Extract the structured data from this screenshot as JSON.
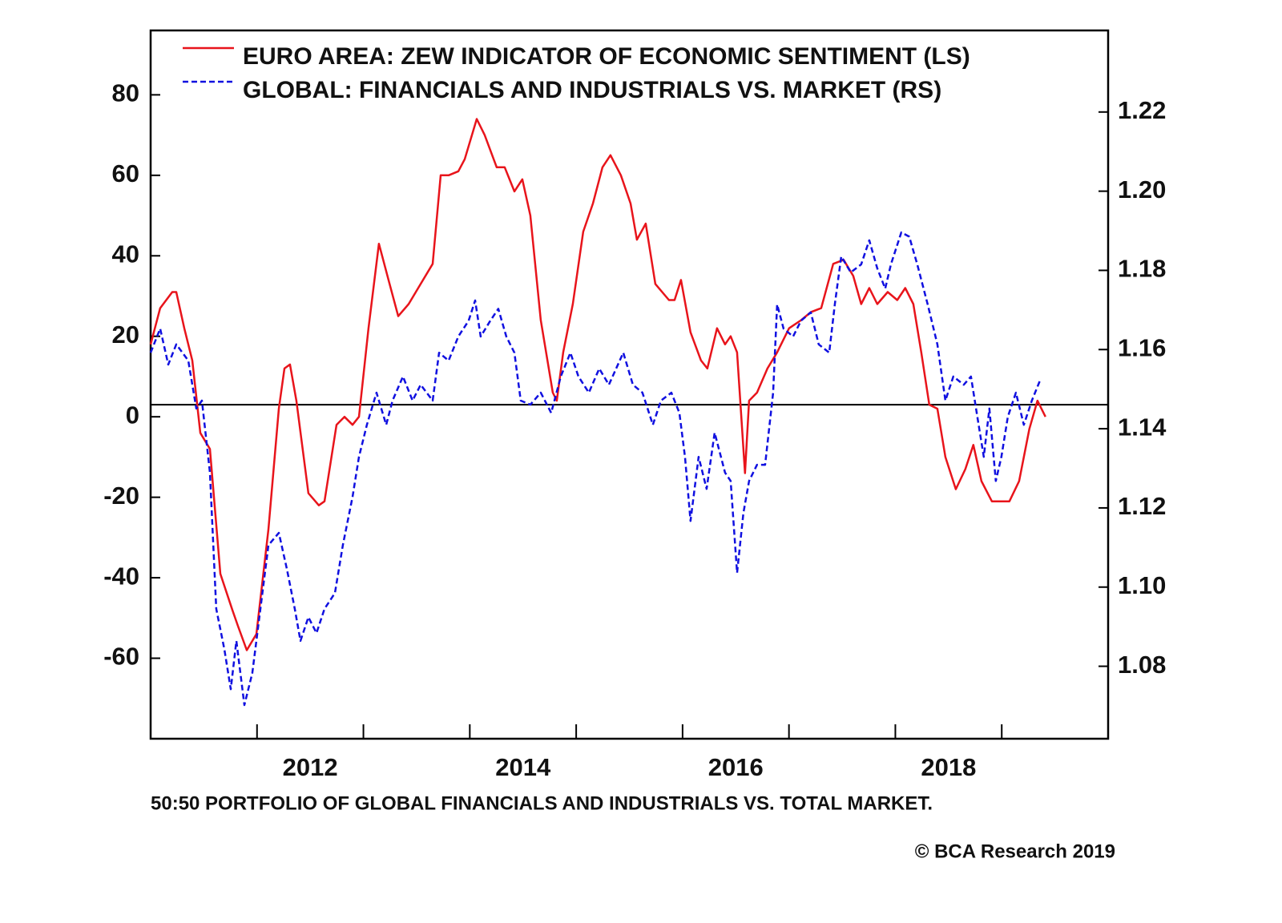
{
  "chart_data": {
    "type": "line",
    "footnote": "50:50 PORTFOLIO OF GLOBAL FINANCIALS AND INDUSTRIALS VS. TOTAL MARKET.",
    "source": "© BCA Research 2019",
    "xlim": [
      2011,
      2020
    ],
    "xticks": [
      {
        "value": 2012.5,
        "label": "2012"
      },
      {
        "value": 2014.5,
        "label": "2014"
      },
      {
        "value": 2016.5,
        "label": "2016"
      },
      {
        "value": 2018.5,
        "label": "2018"
      }
    ],
    "xtick_marks": [
      2012,
      2013,
      2014,
      2015,
      2016,
      2017,
      2018,
      2019
    ],
    "ylim": [
      -80,
      96
    ],
    "yticks": [
      -60,
      -40,
      -20,
      0,
      20,
      40,
      60,
      80
    ],
    "y2lim": [
      1.0617,
      1.2406
    ],
    "y2ticks": [
      1.08,
      {
        "value": 1.1,
        "label": "1.10"
      },
      1.12,
      1.14,
      1.16,
      1.18,
      {
        "value": 1.2,
        "label": "1.20"
      },
      1.22
    ],
    "hline": 3,
    "series": [
      {
        "name": "EURO AREA: ZEW INDICATOR OF ECONOMIC SENTIMENT (LS)",
        "color": "#e8141b",
        "line_style": "solid",
        "axis": "y",
        "x": [
          2011.0,
          2011.09,
          2011.203,
          2011.241,
          2011.316,
          2011.392,
          2011.467,
          2011.557,
          2011.655,
          2011.768,
          2011.821,
          2011.904,
          2011.994,
          2012.107,
          2012.205,
          2012.258,
          2012.31,
          2012.37,
          2012.483,
          2012.581,
          2012.634,
          2012.747,
          2012.822,
          2012.898,
          2012.958,
          2013.048,
          2013.146,
          2013.236,
          2013.327,
          2013.425,
          2013.538,
          2013.651,
          2013.726,
          2013.801,
          2013.892,
          2013.952,
          2014.065,
          2014.14,
          2014.253,
          2014.328,
          2014.419,
          2014.494,
          2014.569,
          2014.667,
          2014.78,
          2014.818,
          2014.878,
          2014.968,
          2015.066,
          2015.157,
          2015.247,
          2015.322,
          2015.42,
          2015.511,
          2015.571,
          2015.654,
          2015.744,
          2015.872,
          2015.925,
          2015.985,
          2016.075,
          2016.173,
          2016.233,
          2016.324,
          2016.399,
          2016.452,
          2016.512,
          2016.587,
          2016.625,
          2016.7,
          2016.798,
          2016.889,
          2017.001,
          2017.114,
          2017.205,
          2017.303,
          2017.416,
          2017.514,
          2017.604,
          2017.679,
          2017.755,
          2017.83,
          2017.928,
          2018.018,
          2018.093,
          2018.169,
          2018.244,
          2018.319,
          2018.395,
          2018.47,
          2018.568,
          2018.658,
          2018.733,
          2018.809,
          2018.907,
          2019.072,
          2019.163,
          2019.26,
          2019.336,
          2019.411
        ],
        "values": [
          18,
          27,
          31,
          31,
          22,
          14,
          -4,
          -8,
          -39,
          -48,
          -52,
          -58,
          -54,
          -28,
          2,
          12,
          13,
          4,
          -19,
          -22,
          -21,
          -2,
          0,
          -2,
          0,
          22,
          43,
          34,
          25,
          28,
          33,
          38,
          60,
          60,
          61,
          64,
          74,
          70,
          62,
          62,
          56,
          59,
          50,
          24,
          6,
          4,
          16,
          28,
          46,
          53,
          62,
          65,
          60,
          53,
          44,
          48,
          33,
          29,
          29,
          34,
          21,
          14,
          12,
          22,
          18,
          20,
          16,
          -14,
          4,
          6,
          12,
          16,
          22,
          24,
          26,
          27,
          38,
          39,
          35,
          28,
          32,
          28,
          31,
          29,
          32,
          28,
          16,
          3,
          2,
          -10,
          -18,
          -13,
          -7,
          -16,
          -21,
          -21,
          -16,
          -3,
          4,
          0
        ]
      },
      {
        "name": "GLOBAL: FINANCIALS AND INDUSTRIALS VS. MARKET (RS)",
        "color": "#1010e0",
        "line_style": "dashed",
        "axis": "y2",
        "x": [
          2011.0,
          2011.09,
          2011.166,
          2011.241,
          2011.354,
          2011.429,
          2011.482,
          2011.557,
          2011.617,
          2011.693,
          2011.753,
          2011.806,
          2011.881,
          2011.956,
          2012.032,
          2012.107,
          2012.205,
          2012.28,
          2012.355,
          2012.408,
          2012.483,
          2012.559,
          2012.634,
          2012.732,
          2012.807,
          2012.898,
          2012.958,
          2013.033,
          2013.123,
          2013.214,
          2013.274,
          2013.372,
          2013.462,
          2013.538,
          2013.651,
          2013.711,
          2013.801,
          2013.892,
          2013.989,
          2014.05,
          2014.102,
          2014.193,
          2014.268,
          2014.343,
          2014.419,
          2014.479,
          2014.569,
          2014.667,
          2014.765,
          2014.855,
          2014.946,
          2015.021,
          2015.119,
          2015.217,
          2015.307,
          2015.443,
          2015.533,
          2015.623,
          2015.721,
          2015.797,
          2015.895,
          2015.97,
          2016.023,
          2016.075,
          2016.151,
          2016.226,
          2016.301,
          2016.399,
          2016.452,
          2016.512,
          2016.572,
          2016.625,
          2016.7,
          2016.776,
          2016.851,
          2016.889,
          2016.949,
          2017.039,
          2017.114,
          2017.205,
          2017.28,
          2017.378,
          2017.431,
          2017.491,
          2017.581,
          2017.679,
          2017.755,
          2017.83,
          2017.905,
          2017.958,
          2018.056,
          2018.131,
          2018.206,
          2018.304,
          2018.395,
          2018.47,
          2018.545,
          2018.643,
          2018.711,
          2018.771,
          2018.831,
          2018.884,
          2018.944,
          2018.997,
          2019.057,
          2019.133,
          2019.208,
          2019.283,
          2019.358
        ],
        "values": [
          1.1592,
          1.1653,
          1.1562,
          1.1613,
          1.1572,
          1.1451,
          1.1471,
          1.1289,
          1.0945,
          1.0843,
          1.0742,
          1.0864,
          1.0702,
          1.0783,
          1.0945,
          1.1106,
          1.1137,
          1.1046,
          1.0945,
          1.0864,
          1.0924,
          1.0884,
          1.0945,
          1.0985,
          1.1106,
          1.1228,
          1.1329,
          1.141,
          1.1491,
          1.141,
          1.1471,
          1.1532,
          1.1471,
          1.1511,
          1.1471,
          1.1592,
          1.1572,
          1.1633,
          1.1673,
          1.1724,
          1.1633,
          1.1673,
          1.1703,
          1.1633,
          1.1592,
          1.1471,
          1.1461,
          1.1491,
          1.144,
          1.1532,
          1.1592,
          1.1532,
          1.1491,
          1.1552,
          1.1511,
          1.1592,
          1.1511,
          1.1491,
          1.141,
          1.1471,
          1.1491,
          1.144,
          1.1329,
          1.1167,
          1.1329,
          1.1248,
          1.139,
          1.1289,
          1.1268,
          1.1036,
          1.1187,
          1.1268,
          1.1309,
          1.1309,
          1.1491,
          1.1714,
          1.1653,
          1.1633,
          1.1673,
          1.1694,
          1.1613,
          1.1592,
          1.1714,
          1.1835,
          1.1795,
          1.1815,
          1.1876,
          1.1805,
          1.1754,
          1.1815,
          1.1896,
          1.1885,
          1.1815,
          1.1714,
          1.1613,
          1.1471,
          1.1532,
          1.1511,
          1.1532,
          1.143,
          1.1329,
          1.1451,
          1.1268,
          1.1329,
          1.143,
          1.1491,
          1.141,
          1.1471,
          1.1521
        ]
      }
    ]
  }
}
